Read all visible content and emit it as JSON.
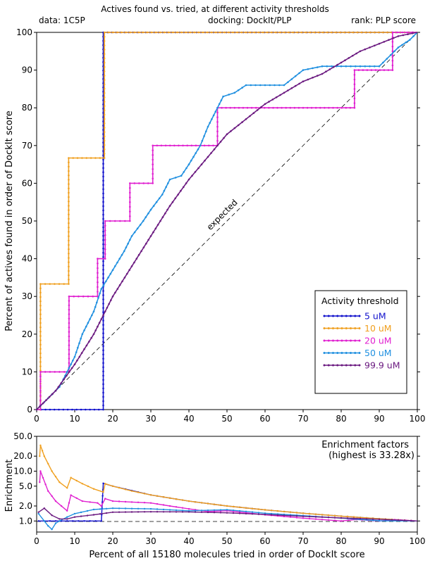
{
  "header": {
    "title": "Actives found vs. tried, at different activity thresholds",
    "left": "data: 1C5P",
    "center": "docking: DockIt/PLP",
    "right": "rank: PLP score"
  },
  "chart_data": [
    {
      "type": "line",
      "title": "Actives found vs. tried, at different activity thresholds",
      "xlabel": "",
      "ylabel": "Percent of actives found in order of DockIt score",
      "xlim": [
        0,
        100
      ],
      "ylim": [
        0,
        100
      ],
      "xticks": [
        "0",
        "10",
        "20",
        "30",
        "40",
        "50",
        "60",
        "70",
        "80",
        "90",
        "100"
      ],
      "yticks": [
        "0",
        "10",
        "20",
        "30",
        "40",
        "50",
        "60",
        "70",
        "80",
        "90",
        "100"
      ],
      "grid": false,
      "legend_title": "Activity threshold",
      "legend_position": "bottom-right",
      "annotation": "expected",
      "series": [
        {
          "name": "5 uM",
          "color": "#1111cc",
          "step": true,
          "x": [
            0,
            17.5,
            17.5,
            100
          ],
          "y": [
            0,
            0,
            100,
            100
          ]
        },
        {
          "name": "10 uM",
          "color": "#f0a020",
          "step": true,
          "x": [
            0,
            1,
            1,
            8.4,
            8.4,
            17.8,
            17.8,
            100
          ],
          "y": [
            0,
            0,
            33.3,
            33.3,
            66.7,
            66.7,
            100,
            100
          ]
        },
        {
          "name": "20 uM",
          "color": "#e020d0",
          "step": true,
          "x": [
            0,
            1,
            1,
            8.5,
            8.5,
            16,
            16,
            18,
            18,
            24.5,
            24.5,
            30.5,
            30.5,
            47.5,
            47.5,
            83.5,
            83.5,
            93.5,
            93.5,
            100
          ],
          "y": [
            0,
            0,
            10,
            10,
            30,
            30,
            40,
            40,
            50,
            50,
            60,
            60,
            70,
            70,
            80,
            80,
            90,
            90,
            100,
            100
          ]
        },
        {
          "name": "50 uM",
          "color": "#2090e0",
          "step": false,
          "x": [
            0,
            2,
            4,
            6,
            8,
            10,
            12,
            15,
            17,
            20,
            23,
            25,
            28,
            30,
            33,
            35,
            38,
            40,
            43,
            45,
            47,
            49,
            52,
            55,
            60,
            65,
            70,
            75,
            80,
            85,
            90,
            93,
            95,
            98,
            100
          ],
          "y": [
            0,
            2,
            4,
            6,
            10,
            14,
            20,
            26,
            32,
            37,
            42,
            46,
            50,
            53,
            57,
            61,
            62,
            65,
            70,
            75,
            79,
            83,
            84,
            86,
            86,
            86,
            90,
            91,
            91,
            91,
            91,
            94,
            96,
            98,
            100
          ]
        },
        {
          "name": "99.9 uM",
          "color": "#6b1a80",
          "step": false,
          "x": [
            0,
            5,
            10,
            15,
            20,
            25,
            30,
            35,
            40,
            45,
            50,
            55,
            60,
            65,
            70,
            75,
            80,
            85,
            90,
            95,
            100
          ],
          "y": [
            0,
            5,
            12,
            20,
            30,
            38,
            46,
            54,
            61,
            67,
            73,
            77,
            81,
            84,
            87,
            89,
            92,
            95,
            97,
            99,
            100
          ]
        }
      ]
    },
    {
      "type": "line",
      "title": "Enrichment factors",
      "subtitle": "(highest is 33.28x)",
      "xlabel": "Percent of all 15180 molecules tried in order of DockIt score",
      "ylabel": "Enrichment",
      "xlim": [
        0,
        100
      ],
      "ylim": [
        0.6,
        50
      ],
      "yscale": "log",
      "xticks": [
        "0",
        "10",
        "20",
        "30",
        "40",
        "50",
        "60",
        "70",
        "80",
        "90",
        "100"
      ],
      "yticks": [
        "1.0",
        "2.0",
        "5.0",
        "10.0",
        "20.0",
        "50.0"
      ],
      "grid": false,
      "series": [
        {
          "name": "5 uM",
          "color": "#1111cc",
          "x": [
            0.5,
            17,
            17.5,
            20,
            30,
            40,
            50,
            60,
            70,
            80,
            90,
            100
          ],
          "y": [
            1.0,
            1.0,
            5.7,
            5.0,
            3.33,
            2.5,
            2.0,
            1.67,
            1.43,
            1.25,
            1.11,
            1.0
          ]
        },
        {
          "name": "10 uM",
          "color": "#f0a020",
          "x": [
            0.8,
            1,
            2,
            4,
            6,
            8,
            9,
            12,
            15,
            17.5,
            18,
            20,
            25,
            30,
            40,
            50,
            60,
            70,
            80,
            90,
            100
          ],
          "y": [
            20,
            33,
            20,
            10,
            6,
            4.6,
            7.4,
            5.6,
            4.4,
            3.8,
            5.6,
            5.0,
            4.0,
            3.33,
            2.5,
            2.0,
            1.67,
            1.43,
            1.25,
            1.11,
            1.0
          ]
        },
        {
          "name": "20 uM",
          "color": "#e020d0",
          "x": [
            0.8,
            1,
            3,
            5,
            8,
            9,
            12,
            16,
            17,
            18,
            20,
            25,
            30,
            35,
            40,
            45,
            50,
            60,
            70,
            80,
            84,
            90,
            94,
            100
          ],
          "y": [
            6,
            10,
            4,
            2.5,
            1.6,
            3.3,
            2.5,
            2.3,
            2.0,
            2.8,
            2.5,
            2.4,
            2.3,
            2.0,
            1.75,
            1.55,
            1.6,
            1.33,
            1.14,
            1.0,
            1.07,
            1.0,
            1.06,
            1.0
          ]
        },
        {
          "name": "50 uM",
          "color": "#2090e0",
          "x": [
            0.5,
            2,
            3,
            4,
            5,
            6,
            8,
            10,
            15,
            20,
            30,
            40,
            50,
            60,
            70,
            80,
            90,
            100
          ],
          "y": [
            1.4,
            1.0,
            0.8,
            0.68,
            0.9,
            1.0,
            1.2,
            1.4,
            1.7,
            1.8,
            1.75,
            1.6,
            1.68,
            1.43,
            1.28,
            1.14,
            1.01,
            1.0
          ]
        },
        {
          "name": "99.9 uM",
          "color": "#6b1a80",
          "x": [
            0.5,
            2,
            4,
            6,
            8,
            10,
            15,
            20,
            30,
            40,
            50,
            60,
            70,
            80,
            90,
            100
          ],
          "y": [
            1.5,
            1.8,
            1.3,
            1.1,
            1.1,
            1.2,
            1.33,
            1.5,
            1.53,
            1.52,
            1.46,
            1.35,
            1.24,
            1.15,
            1.08,
            1.0
          ]
        }
      ]
    }
  ]
}
